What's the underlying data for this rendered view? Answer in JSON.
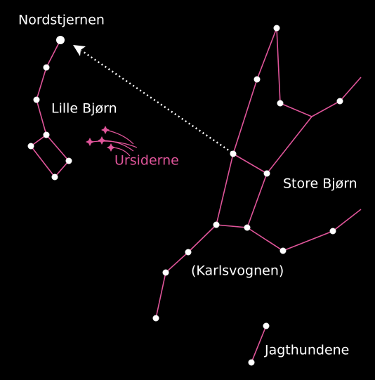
{
  "labels": {
    "polaris": "Nordstjernen",
    "little_bear": "Lille Bjørn",
    "meteor_shower": "Ursiderne",
    "great_bear": "Store Bjørn",
    "big_dipper": "(Karlsvognen)",
    "hunting_dogs": "Jagthundene"
  }
}
